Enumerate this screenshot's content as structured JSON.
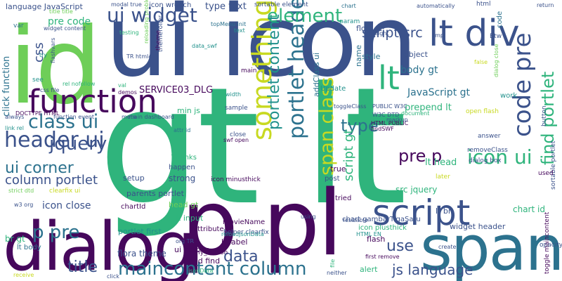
{
  "palette": {
    "purple": "#46085c",
    "indigo": "#3b528b",
    "blue": "#2c728e",
    "teal": "#21918c",
    "green": "#2fb47c",
    "lime": "#6ece58",
    "yellow": "#c8d921"
  },
  "words": [
    {
      "t": "gt lt",
      "c": "green"
    },
    {
      "t": "ui icon",
      "c": "indigo"
    },
    {
      "t": "id",
      "c": "lime"
    },
    {
      "t": "dialog",
      "c": "purple"
    },
    {
      "t": "span",
      "c": "blue"
    },
    {
      "t": "p pl",
      "c": "purple"
    },
    {
      "t": "script",
      "c": "indigo"
    },
    {
      "t": "function",
      "c": "purple"
    },
    {
      "t": "lt div",
      "c": "indigo"
    },
    {
      "t": "something",
      "c": "yellow"
    },
    {
      "t": "ui widget",
      "c": "indigo"
    },
    {
      "t": "code pre",
      "c": "indigo"
    },
    {
      "t": "portlet header",
      "c": "blue"
    },
    {
      "t": "span class",
      "c": "yellow"
    },
    {
      "t": "class ui",
      "c": "blue"
    },
    {
      "t": "header ui",
      "c": "indigo"
    },
    {
      "t": "maincontent column",
      "c": "blue"
    },
    {
      "t": "jquery",
      "c": "indigo"
    },
    {
      "t": "element",
      "c": "green"
    },
    {
      "t": "icon ui",
      "c": "green"
    },
    {
      "t": "find portlet",
      "c": "green"
    },
    {
      "t": "p pre",
      "c": "blue"
    },
    {
      "t": "pre p",
      "c": "purple"
    },
    {
      "t": "ui corner",
      "c": "blue"
    },
    {
      "t": "type",
      "c": "blue"
    },
    {
      "t": "js language",
      "c": "indigo"
    },
    {
      "t": "script src",
      "c": "indigo"
    },
    {
      "t": "portlet content",
      "c": "teal"
    },
    {
      "t": "column portlet",
      "c": "indigo"
    },
    {
      "t": "lt",
      "c": "green"
    },
    {
      "t": "title",
      "c": "indigo"
    },
    {
      "t": "data",
      "c": "indigo"
    },
    {
      "t": "use",
      "c": "indigo"
    },
    {
      "t": "css",
      "c": "indigo"
    },
    {
      "t": "script gt",
      "c": "green"
    },
    {
      "t": "language JavaScript",
      "c": "indigo"
    },
    {
      "t": "pre code",
      "c": "green"
    },
    {
      "t": "click function",
      "c": "blue"
    },
    {
      "t": "icon close",
      "c": "indigo"
    },
    {
      "t": "JavaScript gt",
      "c": "blue"
    },
    {
      "t": "SERVICE03_DLG",
      "c": "purple"
    },
    {
      "t": "type text",
      "c": "indigo"
    },
    {
      "t": "body gt",
      "c": "blue"
    },
    {
      "t": "chart id",
      "c": "green"
    },
    {
      "t": "lt head",
      "c": "green"
    },
    {
      "t": "prepend lt",
      "c": "green"
    },
    {
      "t": "widget header",
      "c": "indigo"
    },
    {
      "t": "lt br",
      "c": "indigo"
    },
    {
      "t": "lt label",
      "c": "purple"
    },
    {
      "t": "flora theme",
      "c": "indigo"
    },
    {
      "t": "portlet first",
      "c": "teal"
    },
    {
      "t": "src jquery",
      "c": "green"
    },
    {
      "t": "lt input",
      "c": "green"
    },
    {
      "t": "head gt",
      "c": "lime"
    },
    {
      "t": "parents portlet",
      "c": "indigo"
    },
    {
      "t": "addClass ui",
      "c": "blue"
    },
    {
      "t": "min js",
      "c": "green"
    },
    {
      "t": "strong",
      "c": "indigo"
    },
    {
      "t": "setup",
      "c": "indigo"
    },
    {
      "t": "alert",
      "c": "green"
    },
    {
      "t": "flash",
      "c": "purple"
    },
    {
      "t": "ui helper",
      "c": "purple"
    },
    {
      "t": "end find",
      "c": "purple"
    },
    {
      "t": "chartId",
      "c": "purple"
    },
    {
      "t": "object",
      "c": "indigo"
    },
    {
      "t": "Update",
      "c": "teal"
    },
    {
      "t": "name",
      "c": "blue"
    },
    {
      "t": "style",
      "c": "blue"
    },
    {
      "t": "flora",
      "c": "indigo"
    },
    {
      "t": "icon wrench",
      "c": "indigo"
    },
    {
      "t": "sortable element",
      "c": "indigo"
    },
    {
      "t": "attribute",
      "c": "purple"
    },
    {
      "t": "lt body",
      "c": "blue"
    },
    {
      "t": "br gt",
      "c": "green"
    },
    {
      "t": "main",
      "c": "purple"
    },
    {
      "t": "sample",
      "c": "indigo"
    },
    {
      "t": "close",
      "c": "indigo"
    },
    {
      "t": "tried",
      "c": "purple"
    },
    {
      "t": "true",
      "c": "purple"
    },
    {
      "t": "post",
      "c": "indigo"
    },
    {
      "t": "movieName",
      "c": "purple"
    },
    {
      "t": "icon plusthick",
      "c": "green"
    },
    {
      "t": "chart gambarTigaSatu",
      "c": "indigo"
    },
    {
      "t": "icon minusthick",
      "c": "purple"
    },
    {
      "t": "toggle maincontent",
      "c": "purple"
    },
    {
      "t": "code",
      "c": "blue"
    },
    {
      "t": "work",
      "c": "teal"
    },
    {
      "t": "button",
      "c": "indigo"
    },
    {
      "t": "sortable portlet",
      "c": "indigo"
    },
    {
      "t": "used",
      "c": "purple"
    },
    {
      "t": "Btw",
      "c": "indigo"
    },
    {
      "t": "html",
      "c": "indigo"
    },
    {
      "t": "answer",
      "c": "indigo"
    },
    {
      "t": "removeClass",
      "c": "indigo"
    },
    {
      "t": "dialog box",
      "c": "indigo"
    },
    {
      "t": "later",
      "c": "yellow"
    },
    {
      "t": "resizable",
      "c": "indigo"
    },
    {
      "t": "opacity",
      "c": "indigo"
    },
    {
      "t": "theme",
      "c": "purple"
    },
    {
      "t": "modal true",
      "c": "indigo"
    },
    {
      "t": "title title",
      "c": "lime"
    },
    {
      "t": "widget content",
      "c": "indigo"
    },
    {
      "t": "var",
      "c": "blue"
    },
    {
      "t": "see",
      "c": "teal"
    },
    {
      "t": "css file",
      "c": "indigo"
    },
    {
      "t": "rel nofollow",
      "c": "green"
    },
    {
      "t": "val",
      "c": "green"
    },
    {
      "t": "demos",
      "c": "purple"
    },
    {
      "t": "meta",
      "c": "indigo"
    },
    {
      "t": "main dashboard",
      "c": "indigo"
    },
    {
      "t": "function event",
      "c": "indigo"
    },
    {
      "t": "DOCTYPE HTML",
      "c": "purple"
    },
    {
      "t": "link rel",
      "c": "teal"
    },
    {
      "t": "always",
      "c": "indigo"
    },
    {
      "t": "clearfix ui",
      "c": "yellow"
    },
    {
      "t": "strict dtd",
      "c": "lime"
    },
    {
      "t": "w3 org",
      "c": "indigo"
    },
    {
      "t": "receive",
      "c": "yellow"
    },
    {
      "t": "click",
      "c": "indigo"
    },
    {
      "t": "Thanks",
      "c": "green"
    },
    {
      "t": "happen",
      "c": "indigo"
    },
    {
      "t": "attr id",
      "c": "blue"
    },
    {
      "t": "swf open",
      "c": "purple"
    },
    {
      "t": "helper clearfix",
      "c": "indigo"
    },
    {
      "t": "reloadJsonData",
      "c": "teal"
    },
    {
      "t": "my_button",
      "c": "purple"
    },
    {
      "t": "org TR",
      "c": "indigo"
    },
    {
      "t": "first remove",
      "c": "purple"
    },
    {
      "t": "width",
      "c": "teal"
    },
    {
      "t": "toggleClass",
      "c": "indigo"
    },
    {
      "t": "W3C DTD",
      "c": "indigo"
    },
    {
      "t": "PUBLIC W3C",
      "c": "indigo"
    },
    {
      "t": "HTML PUBLIC",
      "c": "purple"
    },
    {
      "t": "findSWF",
      "c": "purple"
    },
    {
      "t": "dialog close",
      "c": "lime"
    },
    {
      "t": "param",
      "c": "teal"
    },
    {
      "t": "height",
      "c": "indigo"
    },
    {
      "t": "themeroller",
      "c": "indigo"
    },
    {
      "t": "data_swf",
      "c": "teal"
    },
    {
      "t": "text",
      "c": "teal"
    },
    {
      "t": "testing",
      "c": "green"
    },
    {
      "t": "try",
      "c": "teal"
    },
    {
      "t": "reloading problem",
      "c": "lime"
    },
    {
      "t": "flashvars",
      "c": "indigo"
    },
    {
      "t": "TR html4",
      "c": "indigo"
    },
    {
      "t": "topMenu init",
      "c": "blue"
    },
    {
      "t": "return",
      "c": "indigo"
    },
    {
      "t": "file",
      "c": "green"
    },
    {
      "t": "jsonData",
      "c": "green"
    },
    {
      "t": "using",
      "c": "indigo"
    },
    {
      "t": "HTML EN",
      "c": "teal"
    },
    {
      "t": "neither",
      "c": "indigo"
    },
    {
      "t": "markup",
      "c": "indigo"
    },
    {
      "t": "create",
      "c": "indigo"
    },
    {
      "t": "automatically",
      "c": "indigo"
    },
    {
      "t": "open flash",
      "c": "yellow"
    },
    {
      "t": "document",
      "c": "green"
    },
    {
      "t": "false",
      "c": "yellow"
    },
    {
      "t": "chart",
      "c": "blue"
    },
    {
      "t": "tmp",
      "c": "indigo"
    }
  ]
}
